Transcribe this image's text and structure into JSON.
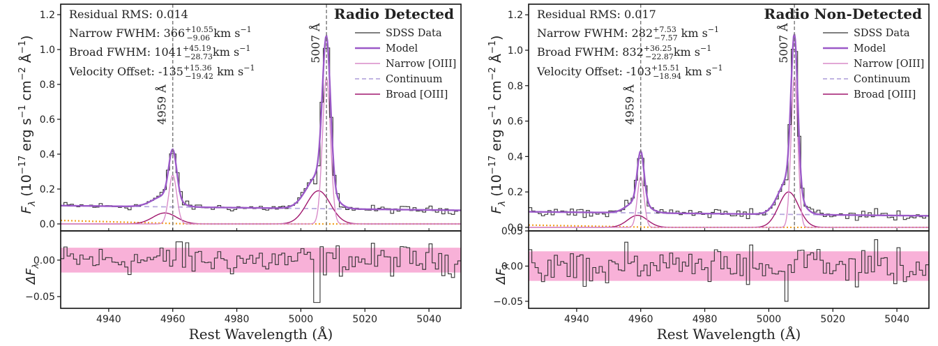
{
  "chart_data": [
    {
      "type": "line",
      "panel": "left",
      "title": "Radio Detected",
      "ylabel_prefix": "F",
      "ylabel_sub": "λ",
      "ylabel_units": "(10",
      "ylabel_exp": "−17",
      "ylabel_units2": "erg s",
      "ylabel_exp2": "−1",
      "ylabel_units3": "cm",
      "ylabel_exp3": "−2",
      "ylabel_units4": "Å",
      "ylabel_exp4": "−1",
      "ylabel_close": ")",
      "xlabel": "Rest Wavelength (Å)",
      "xlim": [
        4925,
        5050
      ],
      "ylim": [
        -0.04,
        1.26
      ],
      "resid_ylim": [
        -0.066,
        0.04
      ],
      "x_ticks": [
        "4940",
        "4960",
        "4980",
        "5000",
        "5020",
        "5040"
      ],
      "y_ticks": [
        "0.0",
        "0.2",
        "0.4",
        "0.6",
        "0.8",
        "1.0",
        "1.2"
      ],
      "resid_ylabel": "ΔF",
      "resid_ylabel_sub": "λ",
      "resid_y_ticks": [
        "0.00",
        "−0.05"
      ],
      "resid_band": 0.017,
      "stats": {
        "rms": "Residual RMS: 0.014",
        "narrow_label": "Narrow FWHM: 366",
        "narrow_sup": "+10.55",
        "narrow_sub": "−9.06",
        "narrow_unit": " km s",
        "broad_label": "Broad FWHM: 1041",
        "broad_sup": "+45.19",
        "broad_sub": "−28.73",
        "broad_unit": "km s",
        "offset_label": "Velocity Offset: -135",
        "offset_sup": "+15.36",
        "offset_sub": "−19.42",
        "offset_unit": " km s",
        "unit_exp": "−1"
      },
      "lines": [
        {
          "label": "4959 Å",
          "x": 4960
        },
        {
          "label": "5007 Å",
          "x": 5008
        }
      ],
      "legend": [
        "SDSS Data",
        "Model",
        "Narrow [OIII]",
        "Continuum",
        "Broad [OIII]"
      ],
      "model": {
        "continuum": [
          0.105,
          0.078
        ],
        "narrow": [
          {
            "center": 4960,
            "amp": 0.28,
            "sigma": 1.25
          },
          {
            "center": 5008,
            "amp": 0.84,
            "sigma": 1.25
          }
        ],
        "broad": [
          {
            "center": 4957.5,
            "amp": 0.063,
            "sigma": 3.7
          },
          {
            "center": 5005.5,
            "amp": 0.19,
            "sigma": 3.7
          }
        ],
        "orange_level": [
          0.02,
          0.0
        ]
      },
      "colors": {
        "data": "#333333",
        "model": "#9b59c8",
        "narrow": "#d98cc9",
        "continuum": "#b7a9de",
        "broad": "#a0176e",
        "orange": "#f2a020",
        "band": "#f7a8d4",
        "vline": "#777777"
      }
    },
    {
      "type": "line",
      "panel": "right",
      "title": "Radio Non-Detected",
      "ylabel_prefix": "F",
      "ylabel_sub": "λ",
      "ylabel_units": "(10",
      "ylabel_exp": "−17",
      "ylabel_units2": "erg s",
      "ylabel_exp2": "−1",
      "ylabel_units3": "cm",
      "ylabel_exp3": "−2",
      "ylabel_units4": "Å",
      "ylabel_exp4": "−1",
      "ylabel_close": ")",
      "xlabel": "Rest Wavelength (Å)",
      "xlim": [
        4925,
        5050
      ],
      "ylim": [
        -0.02,
        1.26
      ],
      "resid_ylim": [
        -0.06,
        0.05
      ],
      "x_ticks": [
        "4940",
        "4960",
        "4980",
        "5000",
        "5020",
        "5040"
      ],
      "y_ticks": [
        "0.0",
        "0.2",
        "0.4",
        "0.6",
        "0.8",
        "1.0",
        "1.2"
      ],
      "resid_ylabel": "ΔF",
      "resid_ylabel_sub": "λ",
      "resid_y_ticks": [
        "0.05",
        "0.00",
        "−0.05"
      ],
      "resid_band": 0.021,
      "stats": {
        "rms": "Residual RMS: 0.017",
        "narrow_label": "Narrow FWHM: 282",
        "narrow_sup": "+7.53",
        "narrow_sub": "−7.57",
        "narrow_unit": " km s",
        "broad_label": "Broad FWHM: 832",
        "broad_sup": "+36.25",
        "broad_sub": "−22.87",
        "broad_unit": "km s",
        "offset_label": "Velocity Offset: -103",
        "offset_sup": "+15.51",
        "offset_sub": "−18.94",
        "offset_unit": " km s",
        "unit_exp": "−1"
      },
      "lines": [
        {
          "label": "4959 Å",
          "x": 4960
        },
        {
          "label": "5007 Å",
          "x": 5008
        }
      ],
      "legend": [
        "SDSS Data",
        "Model",
        "Narrow [OIII]",
        "Continuum",
        "Broad [OIII]"
      ],
      "model": {
        "continuum": [
          0.088,
          0.065
        ],
        "narrow": [
          {
            "center": 4960,
            "amp": 0.285,
            "sigma": 1.05
          },
          {
            "center": 5008,
            "amp": 0.85,
            "sigma": 1.05
          }
        ],
        "broad": [
          {
            "center": 4959,
            "amp": 0.068,
            "sigma": 3.1
          },
          {
            "center": 5006.2,
            "amp": 0.2,
            "sigma": 3.1
          }
        ],
        "orange_level": [
          0.013,
          0.0
        ]
      },
      "colors": {
        "data": "#333333",
        "model": "#9b59c8",
        "narrow": "#d98cc9",
        "continuum": "#b7a9de",
        "broad": "#a0176e",
        "orange": "#f2a020",
        "band": "#f7a8d4",
        "vline": "#777777"
      }
    }
  ]
}
